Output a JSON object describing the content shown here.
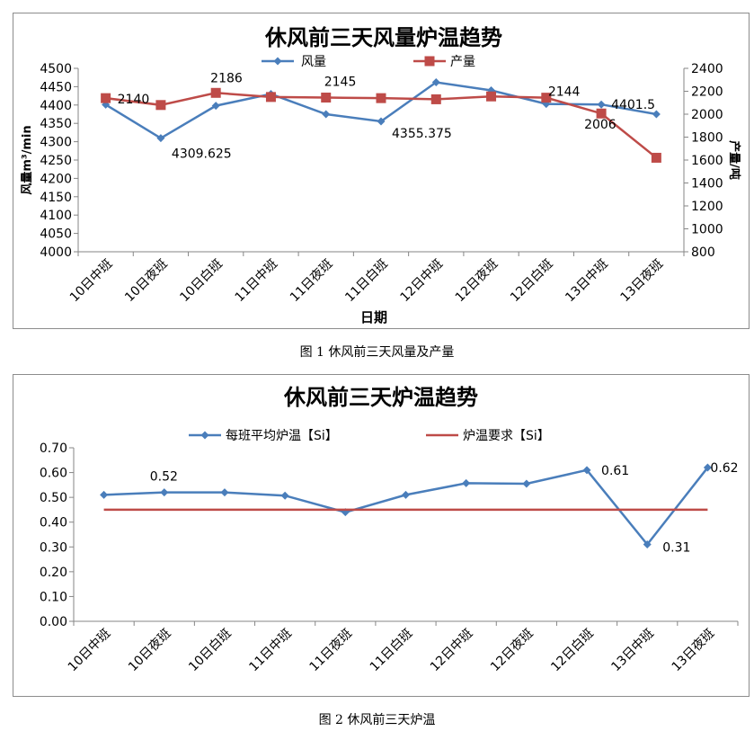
{
  "captions": {
    "figure1": "图 1   休风前三天风量及产量",
    "figure2": "图 2   休风前三天炉温"
  },
  "colors": {
    "blue": "#4a7ebb",
    "red": "#be4b48",
    "axis": "#868686",
    "text": "#000000"
  },
  "chart_data": [
    {
      "type": "line",
      "title": "休风前三天风量炉温趋势",
      "xlabel": "日期",
      "ylabel": "风量m³/min",
      "y2label": "产量/吨",
      "categories": [
        "10日中班",
        "10日夜班",
        "10日白班",
        "11日中班",
        "11日夜班",
        "11日白班",
        "12日中班",
        "12日夜班",
        "12日白班",
        "13日中班",
        "13日夜班"
      ],
      "ylim": [
        4000,
        4500
      ],
      "yticks": [
        "4000",
        "4050",
        "4100",
        "4150",
        "4200",
        "4250",
        "4300",
        "4350",
        "4400",
        "4450",
        "4500"
      ],
      "y2lim": [
        800,
        2400
      ],
      "y2ticks": [
        "800",
        "1000",
        "1200",
        "1400",
        "1600",
        "1800",
        "2000",
        "2200",
        "2400"
      ],
      "legend_position": "top",
      "series": [
        {
          "name": "风量",
          "axis": "left",
          "color": "#4a7ebb",
          "marker": "diamond",
          "values": [
            4401,
            4309.625,
            4398,
            4430,
            4375,
            4355.375,
            4462,
            4440,
            4403,
            4401.5,
            4375
          ],
          "labels": [
            {
              "index": 1,
              "text": "4309.625"
            },
            {
              "index": 5,
              "text": "4355.375"
            },
            {
              "index": 9,
              "text": "4401.5"
            }
          ]
        },
        {
          "name": "产量",
          "axis": "right",
          "color": "#be4b48",
          "marker": "square",
          "values": [
            2140,
            2080,
            2186,
            2150,
            2145,
            2140,
            2130,
            2155,
            2144,
            2006,
            1620
          ],
          "labels": [
            {
              "index": 0,
              "text": "2140"
            },
            {
              "index": 2,
              "text": "2186"
            },
            {
              "index": 4,
              "text": "2145"
            },
            {
              "index": 8,
              "text": "2144"
            },
            {
              "index": 9,
              "text": "2006"
            }
          ]
        }
      ]
    },
    {
      "type": "line",
      "title": "休风前三天炉温趋势",
      "xlabel": "",
      "ylabel": "",
      "categories": [
        "10日中班",
        "10日夜班",
        "10日白班",
        "11日中班",
        "11日夜班",
        "11日白班",
        "12日中班",
        "12日夜班",
        "12日白班",
        "13日中班",
        "13日夜班"
      ],
      "ylim": [
        0,
        0.7
      ],
      "yticks": [
        "0.00",
        "0.10",
        "0.20",
        "0.30",
        "0.40",
        "0.50",
        "0.60",
        "0.70"
      ],
      "legend_position": "top",
      "series": [
        {
          "name": "每班平均炉温【Si】",
          "color": "#4a7ebb",
          "marker": "diamond",
          "values": [
            0.51,
            0.52,
            0.52,
            0.507,
            0.44,
            0.51,
            0.557,
            0.555,
            0.61,
            0.31,
            0.62
          ],
          "labels": [
            {
              "index": 1,
              "text": "0.52"
            },
            {
              "index": 8,
              "text": "0.61"
            },
            {
              "index": 9,
              "text": "0.31"
            },
            {
              "index": 10,
              "text": "0.62"
            }
          ]
        },
        {
          "name": "炉温要求【Si】",
          "color": "#be4b48",
          "marker": "none",
          "values": [
            0.45,
            0.45,
            0.45,
            0.45,
            0.45,
            0.45,
            0.45,
            0.45,
            0.45,
            0.45,
            0.45
          ],
          "labels": []
        }
      ]
    }
  ]
}
